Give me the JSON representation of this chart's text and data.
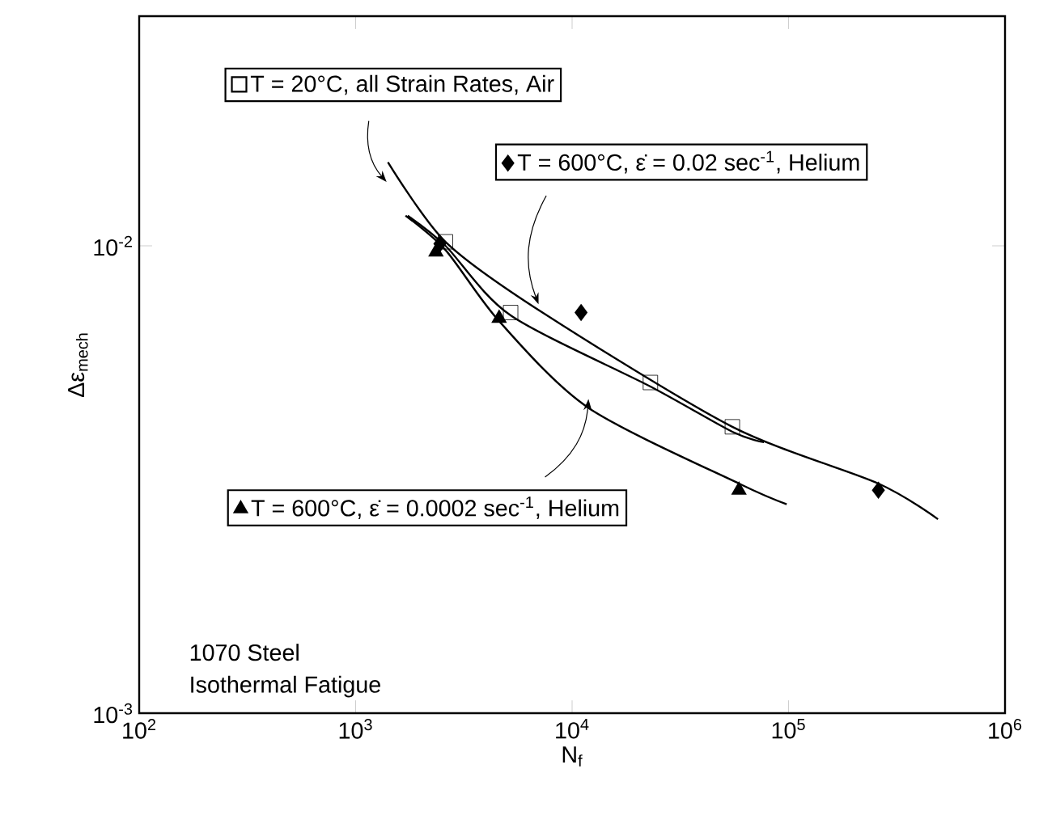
{
  "chart_data": {
    "type": "scatter",
    "xlabel": "N$_{f}$",
    "ylabel": "Δε$_{mech}$",
    "log": "xy",
    "grid": false,
    "legend": "top",
    "xlim": [
      100,
      1000000
    ],
    "ylim": [
      0.001,
      0.031
    ],
    "xticks": [
      {
        "value": 100,
        "label": "10$^{2}$"
      },
      {
        "value": 1000,
        "label": "10$^{3}$"
      },
      {
        "value": 10000,
        "label": "10$^{4}$"
      },
      {
        "value": 100000,
        "label": "10$^{5}$"
      },
      {
        "value": 1000000,
        "label": "10$^{6}$"
      }
    ],
    "yticks": [
      {
        "value": 0.001,
        "label": "10$^{-3}$"
      },
      {
        "value": 0.01,
        "label": "10$^{-2}$"
      }
    ],
    "annotations": [
      "1070 Steel",
      "Isothermal Fatigue"
    ],
    "series": [
      {
        "type": "line",
        "color": "#000000",
        "marker": "none",
        "x": [
          1740,
          2600,
          5200,
          23000,
          55000,
          77000
        ],
        "values": [
          0.0116,
          0.01,
          0.0071,
          0.005,
          0.004,
          0.0038
        ]
      },
      {
        "type": "line",
        "color": "#000000",
        "marker": "none",
        "x": [
          1410,
          2600,
          7300,
          55000,
          260000,
          490000
        ],
        "values": [
          0.0151,
          0.0102,
          0.0072,
          0.0041,
          0.0031,
          0.0026
        ]
      },
      {
        "type": "line",
        "color": "#000000",
        "marker": "none",
        "x": [
          1700,
          2600,
          4600,
          11900,
          59000,
          98000
        ],
        "values": [
          0.0116,
          0.0098,
          0.0069,
          0.0045,
          0.0031,
          0.0028
        ]
      },
      {
        "name": "T = 20°C, all Strain Rates, Air",
        "color": "#000000",
        "marker": "square",
        "x": [
          2600,
          5200,
          23000,
          55000
        ],
        "values": [
          0.0102,
          0.0072,
          0.0051,
          0.0041
        ]
      },
      {
        "name": "T = 600°C, ε̇ = 0.02 sec$^{-1}$, Helium",
        "color": "#000000",
        "marker": "diamond",
        "x": [
          2450,
          11000,
          260000
        ],
        "values": [
          0.0101,
          0.0072,
          0.003
        ]
      },
      {
        "name": "T = 600°C, ε̇ = 0.0002 sec$^{-1}$, Helium",
        "color": "#000000",
        "marker": "triangle",
        "x": [
          2350,
          4600,
          59000
        ],
        "values": [
          0.0097,
          0.007,
          0.003
        ]
      }
    ]
  }
}
